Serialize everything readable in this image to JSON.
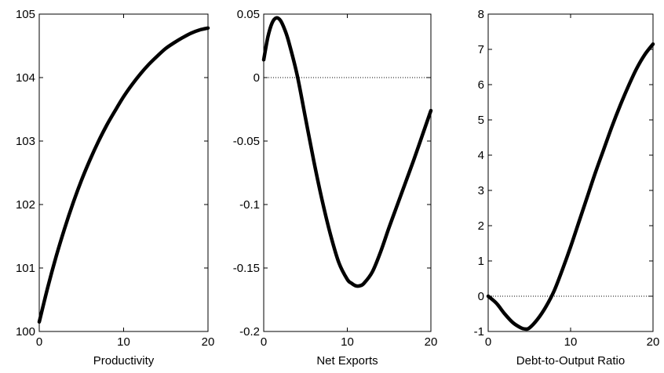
{
  "chart_data": [
    {
      "type": "line",
      "xlabel": "Productivity",
      "xlim": [
        0,
        20
      ],
      "ylim": [
        100,
        105
      ],
      "xticks": [
        0,
        10,
        20
      ],
      "yticks": [
        100,
        101,
        102,
        103,
        104,
        105
      ],
      "ytick_labels": [
        "100",
        "101",
        "102",
        "103",
        "104",
        "105"
      ],
      "zero_line": false,
      "series": [
        {
          "x": [
            0,
            1,
            2,
            3,
            4,
            5,
            6,
            7,
            8,
            9,
            10,
            11,
            12,
            13,
            14,
            15,
            16,
            17,
            18,
            19,
            20
          ],
          "y": [
            100.15,
            100.69,
            101.18,
            101.62,
            102.02,
            102.38,
            102.7,
            102.99,
            103.25,
            103.48,
            103.7,
            103.89,
            104.06,
            104.21,
            104.34,
            104.46,
            104.55,
            104.63,
            104.7,
            104.75,
            104.78
          ]
        }
      ]
    },
    {
      "type": "line",
      "xlabel": "Net Exports",
      "xlim": [
        0,
        20
      ],
      "ylim": [
        -0.2,
        0.05
      ],
      "xticks": [
        0,
        10,
        20
      ],
      "yticks": [
        -0.2,
        -0.15,
        -0.1,
        -0.05,
        0,
        0.05
      ],
      "ytick_labels": [
        "-0.2",
        "-0.15",
        "-0.1",
        "-0.05",
        "0",
        "0.05"
      ],
      "zero_line": true,
      "series": [
        {
          "x": [
            0,
            0.5,
            1,
            1.5,
            2,
            2.5,
            3,
            4,
            5,
            6,
            7,
            8,
            9,
            10,
            10.5,
            11,
            11.5,
            12,
            13,
            14,
            15,
            16,
            17,
            18,
            19,
            20
          ],
          "y": [
            0.014,
            0.032,
            0.043,
            0.047,
            0.045,
            0.038,
            0.028,
            0.002,
            -0.032,
            -0.066,
            -0.097,
            -0.124,
            -0.146,
            -0.159,
            -0.162,
            -0.164,
            -0.164,
            -0.162,
            -0.153,
            -0.137,
            -0.118,
            -0.1,
            -0.082,
            -0.064,
            -0.045,
            -0.026
          ]
        }
      ]
    },
    {
      "type": "line",
      "xlabel": "Debt-to-Output Ratio",
      "xlim": [
        0,
        20
      ],
      "ylim": [
        -1,
        8
      ],
      "xticks": [
        0,
        10,
        20
      ],
      "yticks": [
        -1,
        0,
        1,
        2,
        3,
        4,
        5,
        6,
        7,
        8
      ],
      "ytick_labels": [
        "-1",
        "0",
        "1",
        "2",
        "3",
        "4",
        "5",
        "6",
        "7",
        "8"
      ],
      "zero_line": true,
      "series": [
        {
          "x": [
            0,
            1,
            2,
            3,
            4,
            4.5,
            5,
            6,
            7,
            8,
            9,
            10,
            11,
            12,
            13,
            14,
            15,
            16,
            17,
            18,
            19,
            20
          ],
          "y": [
            0,
            -0.2,
            -0.5,
            -0.75,
            -0.9,
            -0.93,
            -0.9,
            -0.65,
            -0.3,
            0.15,
            0.75,
            1.4,
            2.1,
            2.8,
            3.5,
            4.15,
            4.8,
            5.4,
            5.95,
            6.45,
            6.85,
            7.15
          ]
        }
      ]
    }
  ]
}
